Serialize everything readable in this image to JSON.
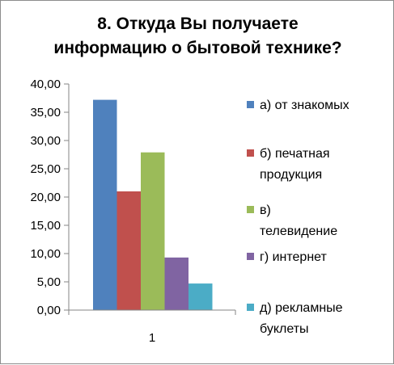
{
  "chart_data": {
    "type": "bar",
    "title": "8. Откуда Вы получаете\nинформацию о бытовой технике?",
    "categories": [
      "1"
    ],
    "ylim": [
      0,
      40
    ],
    "yticks": [
      "0,00",
      "5,00",
      "10,00",
      "15,00",
      "20,00",
      "25,00",
      "30,00",
      "35,00",
      "40,00"
    ],
    "grid": false,
    "legend_position": "right",
    "series": [
      {
        "name": "а) от знакомых",
        "legend_lines": [
          "а) от знакомых"
        ],
        "values": [
          37.2
        ],
        "color": "#4f81bd"
      },
      {
        "name": "б) печатная продукция",
        "legend_lines": [
          "б) печатная",
          "продукция"
        ],
        "values": [
          21.0
        ],
        "color": "#c0504d"
      },
      {
        "name": "в) телевидение",
        "legend_lines": [
          "в)",
          "телевидение"
        ],
        "values": [
          27.9
        ],
        "color": "#9bbb59"
      },
      {
        "name": "г) интернет",
        "legend_lines": [
          "г) интернет"
        ],
        "values": [
          9.3
        ],
        "color": "#8064a2"
      },
      {
        "name": "д) рекламные буклеты",
        "legend_lines": [
          "д) рекламные",
          "буклеты"
        ],
        "values": [
          4.7
        ],
        "color": "#4bacc6"
      }
    ]
  }
}
